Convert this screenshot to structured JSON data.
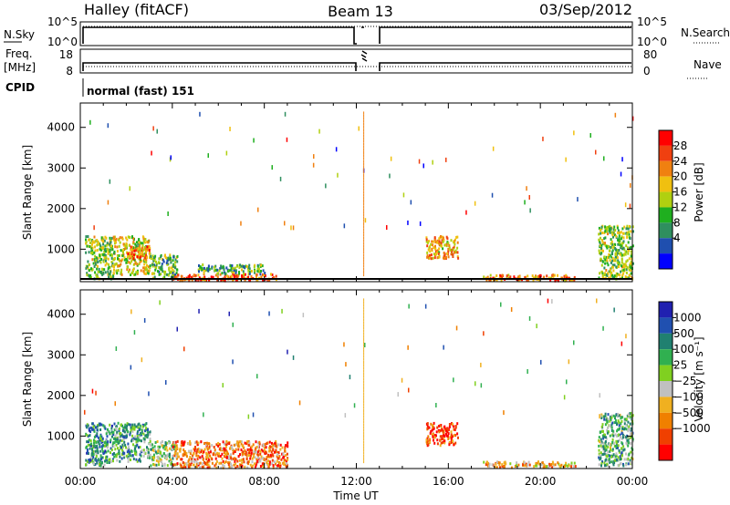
{
  "header": {
    "station": "Halley (fitACF)",
    "beam": "Beam 13",
    "date": "03/Sep/2012"
  },
  "top_panels": {
    "nsky_label": "N.Sky",
    "nsky_ticks": [
      "10^5",
      "10^0"
    ],
    "nsearch_label": "N.Search",
    "nsearch_ticks": [
      "10^5",
      "10^0"
    ],
    "freq_label": "Freq.",
    "freq_unit": "[MHz]",
    "freq_ticks": [
      "18",
      "8"
    ],
    "nave_label": "Nave",
    "nave_ticks": [
      "80",
      "0"
    ],
    "cpid_label": "CPID",
    "cpid_value": "normal (fast) 151"
  },
  "colors": {
    "power": [
      "#0000ff",
      "#1f4faf",
      "#2f8f5f",
      "#1faf1f",
      "#b0d010",
      "#f0c010",
      "#f08010",
      "#f04010",
      "#ff0000"
    ],
    "velocity": [
      "#ff0000",
      "#f04000",
      "#f08000",
      "#f0b020",
      "#c0c0c0",
      "#80d020",
      "#30b050",
      "#208070",
      "#2050b0",
      "#2020b0"
    ]
  },
  "chart_data": [
    {
      "type": "heatmap",
      "name": "power",
      "xlabel": "",
      "ylabel": "Slant Range [km]",
      "xlim": [
        0,
        24
      ],
      "ylim": [
        200,
        4600
      ],
      "yticks": [
        "4000",
        "3000",
        "2000",
        "1000"
      ],
      "colorbar": {
        "label": "Power [dB]",
        "ticks": [
          "28",
          "24",
          "20",
          "16",
          "12",
          "8",
          "4"
        ]
      },
      "regions": [
        {
          "t0": 0.2,
          "t1": 1.4,
          "r0": 300,
          "r1": 1350,
          "v": 0.45
        },
        {
          "t0": 1.4,
          "t1": 3.0,
          "r0": 400,
          "r1": 1350,
          "v": 0.55
        },
        {
          "t0": 2.0,
          "t1": 3.0,
          "r0": 800,
          "r1": 1100,
          "v": 0.75
        },
        {
          "t0": 3.0,
          "t1": 4.2,
          "r0": 300,
          "r1": 900,
          "v": 0.4
        },
        {
          "t0": 4.0,
          "t1": 8.5,
          "r0": 250,
          "r1": 420,
          "v": 0.8
        },
        {
          "t0": 5.0,
          "t1": 8.0,
          "r0": 420,
          "r1": 650,
          "v": 0.35
        },
        {
          "t0": 15.0,
          "t1": 16.4,
          "r0": 800,
          "r1": 1350,
          "v": 0.65
        },
        {
          "t0": 17.5,
          "t1": 21.5,
          "r0": 250,
          "r1": 400,
          "v": 0.75
        },
        {
          "t0": 22.5,
          "t1": 24.0,
          "r0": 300,
          "r1": 1600,
          "v": 0.45
        }
      ]
    },
    {
      "type": "heatmap",
      "name": "velocity",
      "xlabel": "Time UT",
      "ylabel": "Slant Range [km]",
      "xlim": [
        0,
        24
      ],
      "ylim": [
        200,
        4600
      ],
      "xticks": [
        "00:00",
        "04:00",
        "08:00",
        "12:00",
        "16:00",
        "20:00",
        "00:00"
      ],
      "yticks": [
        "4000",
        "3000",
        "2000",
        "1000"
      ],
      "colorbar": {
        "label": "Velocity [m s⁻¹]",
        "ticks": [
          "1000",
          "500",
          "100",
          "25",
          "−25",
          "−100",
          "−500",
          "−1000"
        ]
      },
      "regions": [
        {
          "t0": 0.2,
          "t1": 1.4,
          "r0": 300,
          "r1": 1350,
          "v": 0.7
        },
        {
          "t0": 1.4,
          "t1": 3.0,
          "r0": 400,
          "r1": 1350,
          "v": 0.65
        },
        {
          "t0": 3.0,
          "t1": 4.2,
          "r0": 300,
          "r1": 900,
          "v": 0.55
        },
        {
          "t0": 4.0,
          "t1": 9.0,
          "r0": 250,
          "r1": 900,
          "v": 0.25
        },
        {
          "t0": 15.0,
          "t1": 16.4,
          "r0": 800,
          "r1": 1350,
          "v": 0.15
        },
        {
          "t0": 17.5,
          "t1": 21.5,
          "r0": 250,
          "r1": 400,
          "v": 0.35
        },
        {
          "t0": 22.5,
          "t1": 24.0,
          "r0": 300,
          "r1": 1600,
          "v": 0.6
        }
      ]
    }
  ]
}
